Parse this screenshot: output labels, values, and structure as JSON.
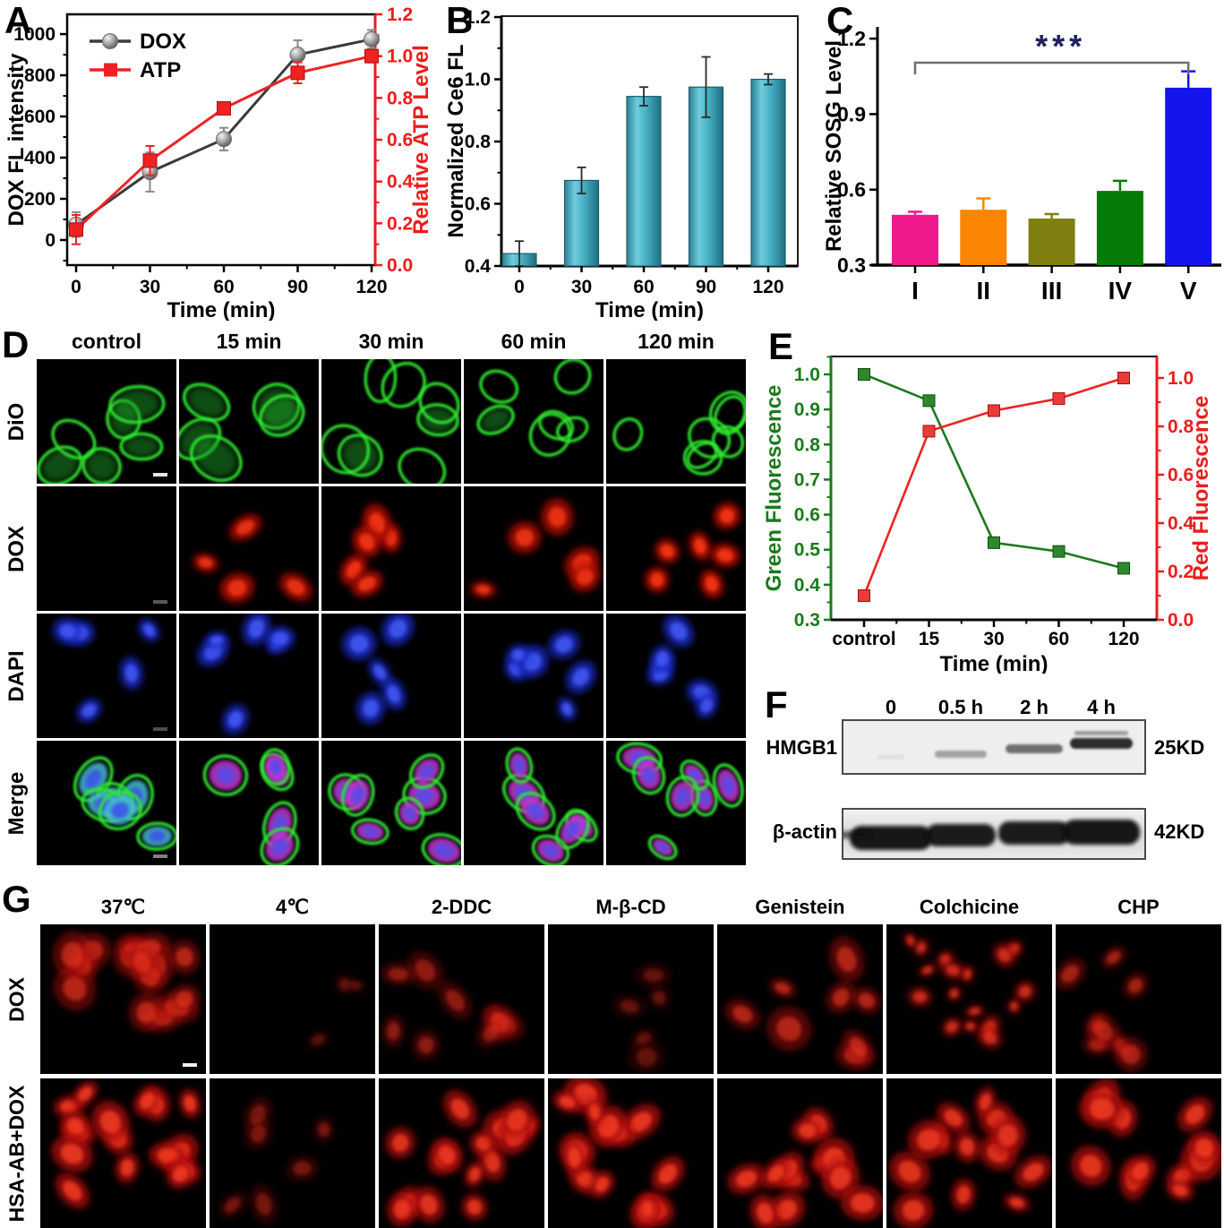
{
  "panelA": {
    "label": "A",
    "chart_data": {
      "type": "line",
      "x": [
        0,
        30,
        60,
        90,
        120
      ],
      "x_tick_labels": [
        "0",
        "30",
        "60",
        "90",
        "120"
      ],
      "xlabel": "Time (min)",
      "left_axis": {
        "label": "DOX FL intensity",
        "color": "#000000",
        "tick_labels": [
          "0",
          "200",
          "400",
          "600",
          "800",
          "1000"
        ],
        "tick_values": [
          0,
          200,
          400,
          600,
          800,
          1000
        ],
        "range": [
          -122,
          1096
        ]
      },
      "right_axis": {
        "label": "Relative ATP Level",
        "color": "#ed1c1c",
        "tick_labels": [
          "0.0",
          "0.2",
          "0.4",
          "0.6",
          "0.8",
          "1.0",
          "1.2"
        ],
        "tick_values": [
          0,
          0.2,
          0.4,
          0.6,
          0.8,
          1.0,
          1.2
        ],
        "range": [
          0,
          1.2
        ]
      },
      "series": [
        {
          "name": "DOX",
          "axis": "left",
          "line_color": "#3b3b3b",
          "marker": "sphere",
          "marker_color": "#9a9a9a",
          "values": [
            75,
            330,
            490,
            900,
            975
          ],
          "errors": [
            60,
            95,
            55,
            70,
            45
          ]
        },
        {
          "name": "ATP",
          "axis": "right",
          "line_color": "#ee2222",
          "marker": "square",
          "marker_color": "#ee2222",
          "values": [
            0.17,
            0.5,
            0.75,
            0.92,
            1.0
          ],
          "errors": [
            0.07,
            0.07,
            0.03,
            0.05,
            0.03
          ]
        }
      ]
    }
  },
  "panelB": {
    "label": "B",
    "chart_data": {
      "type": "bar",
      "categories": [
        "0",
        "30",
        "60",
        "90",
        "120"
      ],
      "xlabel": "Time (min)",
      "ylabel": "Normalized Ce6 FL",
      "y_tick_labels": [
        "0.4",
        "0.6",
        "0.8",
        "1.0",
        "1.2"
      ],
      "y_tick_values": [
        0.4,
        0.6,
        0.8,
        1.0,
        1.2
      ],
      "range": [
        0.4,
        1.203
      ],
      "values": [
        0.44,
        0.675,
        0.945,
        0.975,
        1.0
      ],
      "errors": [
        0.04,
        0.042,
        0.03,
        0.097,
        0.017
      ],
      "bar_color": "#4fb0c4",
      "bar_edge": "#19606f"
    }
  },
  "panelC": {
    "label": "C",
    "chart_data": {
      "type": "bar",
      "categories": [
        "I",
        "II",
        "III",
        "IV",
        "V"
      ],
      "ylabel": "Relative SOSG Level",
      "y_tick_labels": [
        "0.3",
        "0.6",
        "0.9",
        "1.2"
      ],
      "y_tick_values": [
        0.3,
        0.6,
        0.9,
        1.2
      ],
      "range": [
        0.3,
        1.225
      ],
      "values": [
        0.5,
        0.52,
        0.485,
        0.595,
        1.005
      ],
      "errors": [
        0.012,
        0.045,
        0.018,
        0.04,
        0.065
      ],
      "bar_colors": [
        "#ef188c",
        "#fb8500",
        "#7f7f10",
        "#077b07",
        "#1414ee"
      ],
      "significance": {
        "from": "I",
        "to": "V",
        "label": "***",
        "bracket_color": "#6f6f6f",
        "label_color": "#1f2060"
      }
    }
  },
  "panelD": {
    "label": "D",
    "columns": [
      "control",
      "15 min",
      "30 min",
      "60 min",
      "120 min"
    ],
    "rows": [
      "DiO",
      "DOX",
      "DAPI",
      "Merge"
    ]
  },
  "panelE": {
    "label": "E",
    "chart_data": {
      "type": "line",
      "categories": [
        "control",
        "15",
        "30",
        "60",
        "120"
      ],
      "xlabel": "Time (min)",
      "left_axis": {
        "label": "Green Fluorescence",
        "color": "#1a7a1a",
        "tick_labels": [
          "0.3",
          "0.4",
          "0.5",
          "0.6",
          "0.7",
          "0.8",
          "0.9",
          "1.0"
        ],
        "tick_values": [
          0.3,
          0.4,
          0.5,
          0.6,
          0.7,
          0.8,
          0.9,
          1.0
        ],
        "range": [
          0.3,
          1.051
        ]
      },
      "right_axis": {
        "label": "Red Fluorescence",
        "color": "#ee1c1c",
        "tick_labels": [
          "0.0",
          "0.2",
          "0.4",
          "0.6",
          "0.8",
          "1.0"
        ],
        "tick_values": [
          0,
          0.2,
          0.4,
          0.6,
          0.8,
          1.0
        ],
        "range": [
          0,
          1.089
        ]
      },
      "series": [
        {
          "name": "Green",
          "axis": "left",
          "line_color": "#1d7a1d",
          "marker": "square",
          "marker_color": "#2a8a2a",
          "values": [
            1.0,
            0.925,
            0.52,
            0.495,
            0.447
          ]
        },
        {
          "name": "Red",
          "axis": "right",
          "line_color": "#ee2222",
          "marker": "square",
          "marker_color": "#ea3b3b",
          "values": [
            0.1,
            0.78,
            0.865,
            0.915,
            1.0
          ]
        }
      ]
    }
  },
  "panelF": {
    "label": "F",
    "lanes": [
      "0",
      "0.5 h",
      "2 h",
      "4 h"
    ],
    "blots": [
      {
        "target": "HMGB1",
        "mw": "25KD"
      },
      {
        "target": "β-actin",
        "mw": "42KD"
      }
    ]
  },
  "panelG": {
    "label": "G",
    "columns": [
      "37℃",
      "4℃",
      "2-DDC",
      "M-β-CD",
      "Genistein",
      "Colchicine",
      "CHP"
    ],
    "rows": [
      "DOX",
      "HSA-AB+DOX"
    ]
  }
}
